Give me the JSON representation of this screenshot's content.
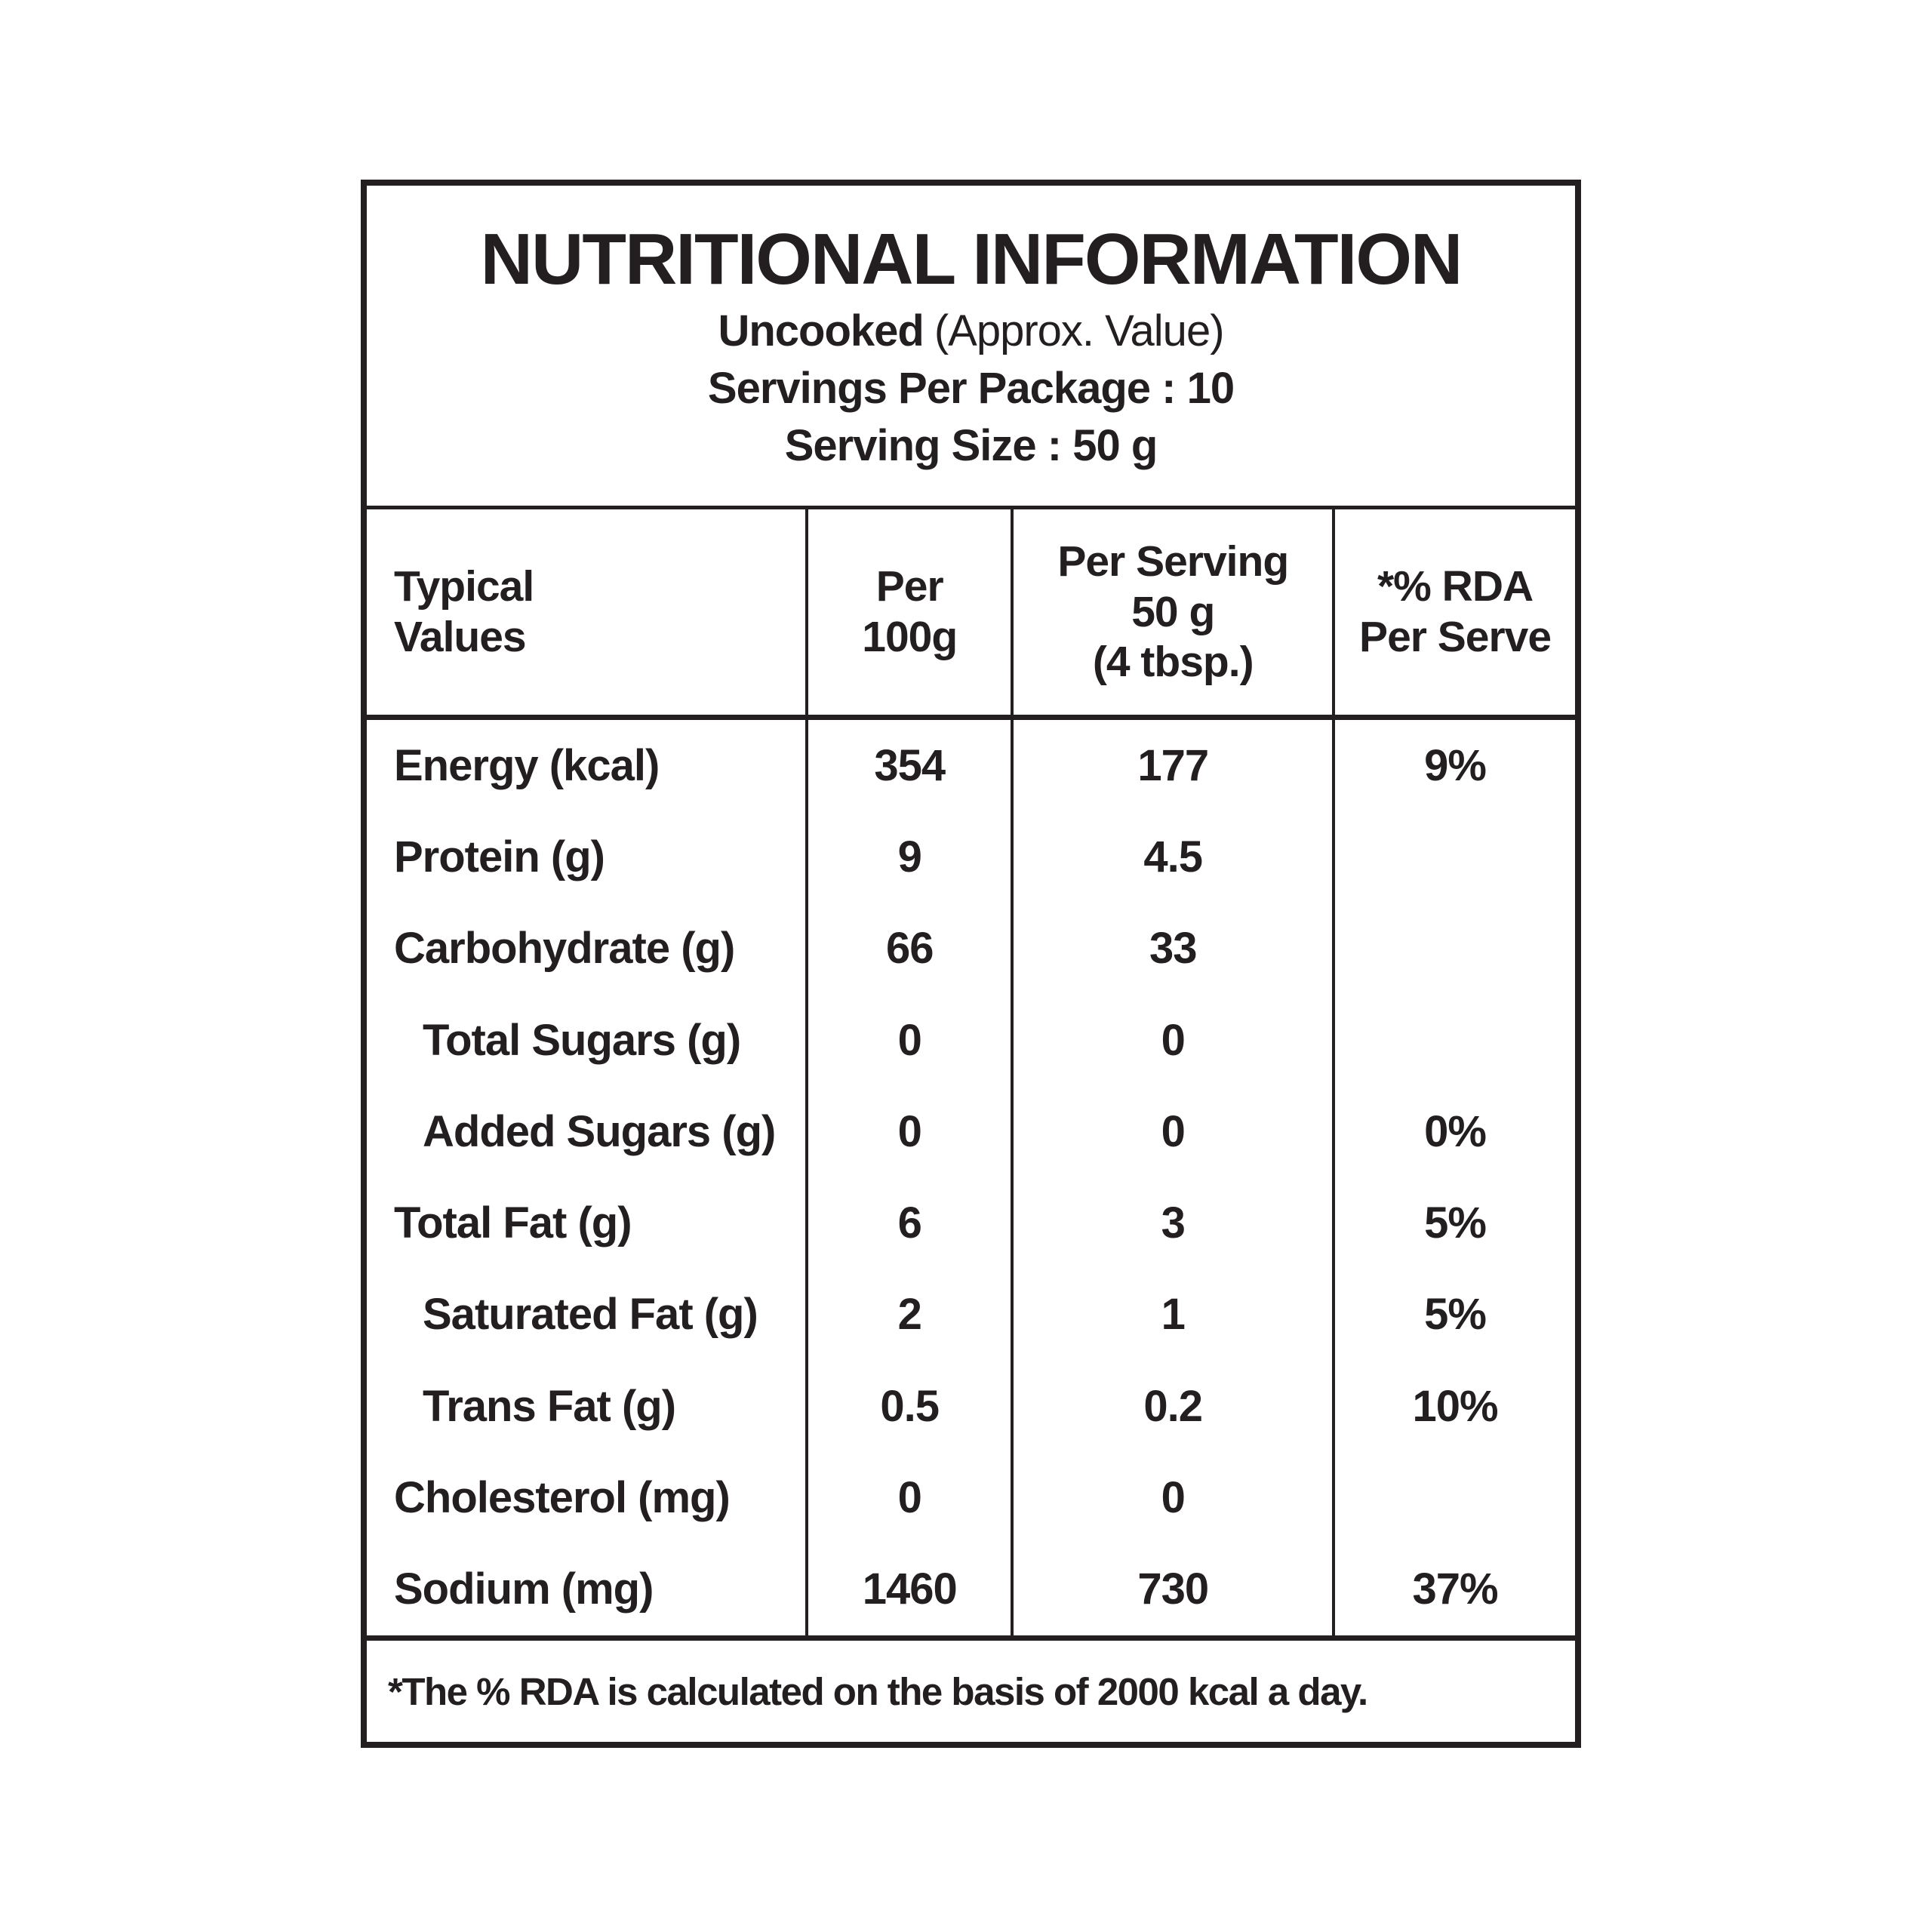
{
  "label": {
    "colors": {
      "ink": "#231f20",
      "background": "#ffffff"
    },
    "header": {
      "title": "NUTRITIONAL INFORMATION",
      "cooking_state": "Uncooked",
      "approx_note": "(Approx. Value)",
      "servings_per_package": "Servings Per Package : 10",
      "serving_size": "Serving Size : 50 g"
    },
    "columns": [
      {
        "line1": "Typical",
        "line2": "Values"
      },
      {
        "line1": "Per",
        "line2": "100g"
      },
      {
        "line1": "Per Serving",
        "line2": "50 g",
        "line3": "(4 tbsp.)"
      },
      {
        "line1": "*% RDA",
        "line2": "Per Serve"
      }
    ],
    "rows": [
      {
        "name": "Energy (kcal)",
        "per_100g": "354",
        "per_serving": "177",
        "rda_per_serve": "9%",
        "indent": false
      },
      {
        "name": "Protein (g)",
        "per_100g": "9",
        "per_serving": "4.5",
        "rda_per_serve": "",
        "indent": false
      },
      {
        "name": "Carbohydrate (g)",
        "per_100g": "66",
        "per_serving": "33",
        "rda_per_serve": "",
        "indent": false
      },
      {
        "name": "Total Sugars (g)",
        "per_100g": "0",
        "per_serving": "0",
        "rda_per_serve": "",
        "indent": true
      },
      {
        "name": "Added Sugars (g)",
        "per_100g": "0",
        "per_serving": "0",
        "rda_per_serve": "0%",
        "indent": true
      },
      {
        "name": "Total Fat (g)",
        "per_100g": "6",
        "per_serving": "3",
        "rda_per_serve": "5%",
        "indent": false
      },
      {
        "name": "Saturated Fat (g)",
        "per_100g": "2",
        "per_serving": "1",
        "rda_per_serve": "5%",
        "indent": true
      },
      {
        "name": "Trans Fat (g)",
        "per_100g": "0.5",
        "per_serving": "0.2",
        "rda_per_serve": "10%",
        "indent": true
      },
      {
        "name": "Cholesterol (mg)",
        "per_100g": "0",
        "per_serving": "0",
        "rda_per_serve": "",
        "indent": false
      },
      {
        "name": "Sodium (mg)",
        "per_100g": "1460",
        "per_serving": "730",
        "rda_per_serve": "37%",
        "indent": false
      }
    ],
    "footnote": "*The % RDA is calculated on the basis of 2000 kcal a day."
  }
}
